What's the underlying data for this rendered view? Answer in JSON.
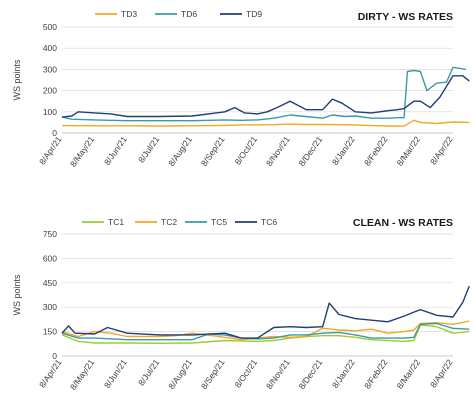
{
  "chart_data": [
    {
      "type": "line",
      "title": "DIRTY - WS RATES",
      "ylabel": "WS points",
      "ylim": [
        0,
        500
      ],
      "yticks": [
        0,
        100,
        200,
        300,
        400,
        500
      ],
      "grid": true,
      "legend": "top-left",
      "xticks": [
        "8/Apr/21",
        "8/May/21",
        "8/Jun/21",
        "8/Jul/21",
        "8/Aug/21",
        "8/Sep/21",
        "8/Oct/21",
        "8/Nov/21",
        "8/Dec/21",
        "8/Jan/22",
        "8/Feb/22",
        "8/Mar/22",
        "8/Apr/22"
      ],
      "series": [
        {
          "name": "TD3",
          "color": "#f5a623",
          "x": [
            0,
            1,
            2,
            3,
            4,
            5,
            5.5,
            6,
            6.5,
            7,
            7.5,
            8,
            8.5,
            9,
            9.5,
            10,
            10.5,
            10.8,
            11,
            11.5,
            12,
            12.5
          ],
          "y": [
            35,
            34,
            34,
            33,
            34,
            36,
            38,
            38,
            39,
            42,
            40,
            40,
            39,
            38,
            35,
            33,
            32,
            60,
            50,
            45,
            52,
            50
          ]
        },
        {
          "name": "TD6",
          "color": "#3a9aa8",
          "x": [
            0,
            0.3,
            1,
            2,
            3,
            4,
            5,
            5.5,
            6,
            6.5,
            7,
            7.3,
            8,
            8.3,
            8.7,
            9,
            9.5,
            10,
            10.3,
            10.5,
            10.6,
            10.8,
            11,
            11.2,
            11.5,
            11.8,
            12,
            12.2,
            12.4
          ],
          "y": [
            75,
            65,
            62,
            58,
            58,
            58,
            62,
            60,
            62,
            70,
            85,
            80,
            70,
            85,
            78,
            80,
            70,
            70,
            72,
            72,
            290,
            295,
            290,
            200,
            235,
            240,
            310,
            305,
            300
          ]
        },
        {
          "name": "TD9",
          "color": "#1f3f76",
          "x": [
            0,
            0.3,
            0.5,
            1,
            1.5,
            2,
            3,
            4,
            5,
            5.3,
            5.6,
            6,
            6.3,
            6.6,
            7,
            7.5,
            8,
            8.3,
            8.6,
            9,
            9.5,
            10,
            10.3,
            10.5,
            10.8,
            11,
            11.3,
            11.6,
            12,
            12.3,
            12.5
          ],
          "y": [
            75,
            80,
            100,
            95,
            90,
            78,
            78,
            80,
            100,
            120,
            95,
            90,
            100,
            120,
            150,
            110,
            110,
            160,
            140,
            100,
            95,
            105,
            110,
            115,
            150,
            150,
            120,
            170,
            270,
            270,
            245
          ]
        }
      ]
    },
    {
      "type": "line",
      "title": "CLEAN - WS RATES",
      "ylabel": "WS points",
      "ylim": [
        0,
        750
      ],
      "yticks": [
        0,
        150,
        300,
        450,
        600,
        750
      ],
      "grid": true,
      "legend": "top-left",
      "xticks": [
        "8/Apr/21",
        "8/May/21",
        "8/Jun/21",
        "8/Jul/21",
        "8/Aug/21",
        "8/Sep/21",
        "8/Oct/21",
        "8/Nov/21",
        "8/Dec/21",
        "8/Jan/22",
        "8/Feb/22",
        "8/Mar/22",
        "8/Apr/22"
      ],
      "series": [
        {
          "name": "TC1",
          "color": "#9acd32",
          "x": [
            0,
            0.5,
            1,
            2,
            3,
            4,
            5,
            6,
            6.5,
            7,
            7.5,
            8,
            8.5,
            9,
            9.5,
            10,
            10.5,
            10.8,
            11,
            11.5,
            12,
            12.5
          ],
          "y": [
            130,
            90,
            80,
            80,
            78,
            80,
            95,
            90,
            95,
            110,
            120,
            125,
            125,
            115,
            100,
            95,
            90,
            95,
            190,
            180,
            140,
            150
          ]
        },
        {
          "name": "TC2",
          "color": "#f5a623",
          "x": [
            0,
            0.5,
            1,
            1.5,
            2,
            3,
            3.5,
            4,
            5,
            5.5,
            6,
            6.5,
            7,
            7.5,
            8,
            8.5,
            9,
            9.5,
            10,
            10.5,
            10.8,
            11,
            11.5,
            12,
            12.5
          ],
          "y": [
            150,
            120,
            150,
            140,
            120,
            120,
            125,
            140,
            115,
            100,
            110,
            120,
            115,
            120,
            170,
            160,
            155,
            165,
            140,
            150,
            160,
            200,
            205,
            195,
            215
          ]
        },
        {
          "name": "TC5",
          "color": "#3a9aa8",
          "x": [
            0,
            0.5,
            1,
            2,
            3,
            4,
            4.5,
            5,
            5.5,
            6,
            6.5,
            7,
            7.5,
            8,
            8.5,
            9,
            9.5,
            10,
            10.5,
            10.8,
            11,
            11.5,
            12,
            12.5
          ],
          "y": [
            140,
            110,
            110,
            100,
            100,
            100,
            135,
            130,
            110,
            105,
            110,
            130,
            130,
            140,
            145,
            130,
            110,
            110,
            110,
            115,
            195,
            200,
            170,
            165
          ]
        },
        {
          "name": "TC6",
          "color": "#1f3f76",
          "x": [
            0,
            0.2,
            0.4,
            1,
            1.4,
            2,
            3,
            4,
            5,
            5.5,
            6,
            6.5,
            7,
            7.5,
            8,
            8.2,
            8.5,
            9,
            9.5,
            10,
            10.5,
            10.8,
            11,
            11.5,
            12,
            12.3,
            12.5
          ],
          "y": [
            140,
            185,
            140,
            135,
            175,
            140,
            130,
            130,
            140,
            110,
            110,
            175,
            180,
            175,
            180,
            325,
            255,
            230,
            220,
            210,
            245,
            270,
            285,
            250,
            240,
            330,
            430
          ]
        }
      ]
    }
  ]
}
